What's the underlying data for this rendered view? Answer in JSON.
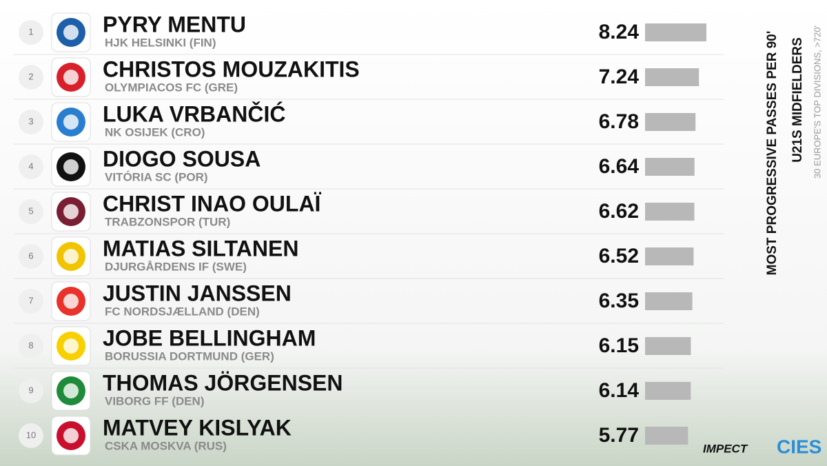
{
  "chart_data": {
    "type": "bar",
    "title": "MOST PROGRESSIVE PASSES PER 90'",
    "subtitle": "U21S MIDFIELDERS",
    "note": "30 EUROPE'S TOP DIVISIONS, >720'",
    "ranks": [
      1,
      2,
      3,
      4,
      5,
      6,
      7,
      8,
      9,
      10
    ],
    "categories": [
      "PYRY MENTU",
      "CHRISTOS MOUZAKITIS",
      "LUKA VRBANČIĆ",
      "DIOGO SOUSA",
      "CHRIST INAO OULAÏ",
      "MATIAS SILTANEN",
      "JUSTIN JANSSEN",
      "JOBE BELLINGHAM",
      "THOMAS JÖRGENSEN",
      "MATVEY KISLYAK"
    ],
    "clubs": [
      "HJK HELSINKI (FIN)",
      "OLYMPIACOS FC (GRE)",
      "NK OSIJEK (CRO)",
      "VITÓRIA SC (POR)",
      "TRABZONSPOR (TUR)",
      "DJURGÅRDENS IF (SWE)",
      "FC NORDSJÆLLAND (DEN)",
      "BORUSSIA DORTMUND (GER)",
      "VIBORG FF (DEN)",
      "CSKA MOSKVA (RUS)"
    ],
    "values": [
      8.24,
      7.24,
      6.78,
      6.64,
      6.62,
      6.52,
      6.35,
      6.15,
      6.14,
      5.77
    ],
    "color": "#b8b8b8",
    "brands": [
      "IMPECT",
      "CIES"
    ]
  }
}
